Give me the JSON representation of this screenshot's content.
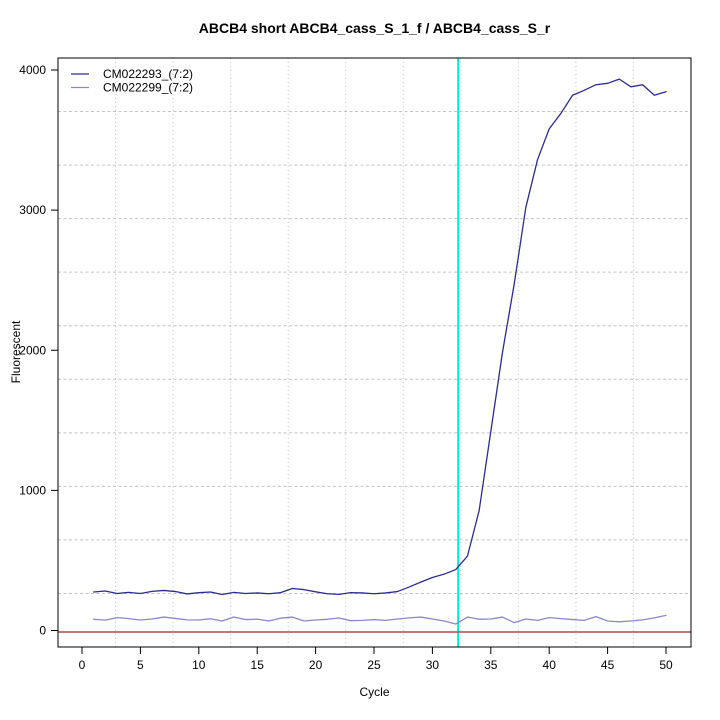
{
  "page": {
    "background": "#ffffff"
  },
  "chart_data": {
    "type": "line",
    "title": "ABCB4 short ABCB4_cass_S_1_f / ABCB4_cass_S_r",
    "xlabel": "Cycle",
    "ylabel": "Fluorescent",
    "x_ticks": [
      0,
      5,
      10,
      15,
      20,
      25,
      30,
      35,
      40,
      45,
      50
    ],
    "y_ticks": [
      0,
      1000,
      2000,
      3000,
      4000
    ],
    "xlim": [
      -2,
      52
    ],
    "ylim": [
      -120,
      4090
    ],
    "grid": {
      "on": true,
      "nx": 11,
      "ny": 11,
      "color": "#c4c4c4"
    },
    "legend_position": "topleft",
    "threshold_cycle_line": {
      "x": 32.2,
      "color": "#00e8e8"
    },
    "baseline_zero_line": {
      "y": 0,
      "color": "#b04a4a"
    },
    "x": [
      1,
      2,
      3,
      4,
      5,
      6,
      7,
      8,
      9,
      10,
      11,
      12,
      13,
      14,
      15,
      16,
      17,
      18,
      19,
      20,
      21,
      22,
      23,
      24,
      25,
      26,
      27,
      28,
      29,
      30,
      31,
      32,
      33,
      34,
      35,
      36,
      37,
      38,
      39,
      40,
      41,
      42,
      43,
      44,
      45,
      46,
      47,
      48,
      49,
      50
    ],
    "series": [
      {
        "name": "CM022293_(7:2)",
        "color": "#2c2c90",
        "values": [
          275,
          282,
          264,
          272,
          264,
          279,
          286,
          278,
          261,
          270,
          275,
          257,
          272,
          264,
          268,
          262,
          270,
          300,
          292,
          276,
          262,
          258,
          270,
          268,
          262,
          268,
          278,
          310,
          345,
          378,
          402,
          435,
          530,
          855,
          1420,
          1985,
          2470,
          3020,
          3360,
          3580,
          3690,
          3820,
          3855,
          3895,
          3905,
          3935,
          3880,
          3895,
          3820,
          3845
        ]
      },
      {
        "name": "CM022299_(7:2)",
        "color": "#8888cc",
        "values": [
          80,
          74,
          92,
          85,
          75,
          82,
          96,
          86,
          76,
          75,
          84,
          68,
          96,
          78,
          81,
          68,
          88,
          96,
          68,
          75,
          80,
          89,
          70,
          72,
          78,
          72,
          82,
          90,
          96,
          82,
          68,
          46,
          96,
          80,
          82,
          96,
          56,
          82,
          72,
          92,
          85,
          78,
          72,
          99,
          68,
          62,
          68,
          76,
          90,
          108
        ]
      }
    ]
  }
}
